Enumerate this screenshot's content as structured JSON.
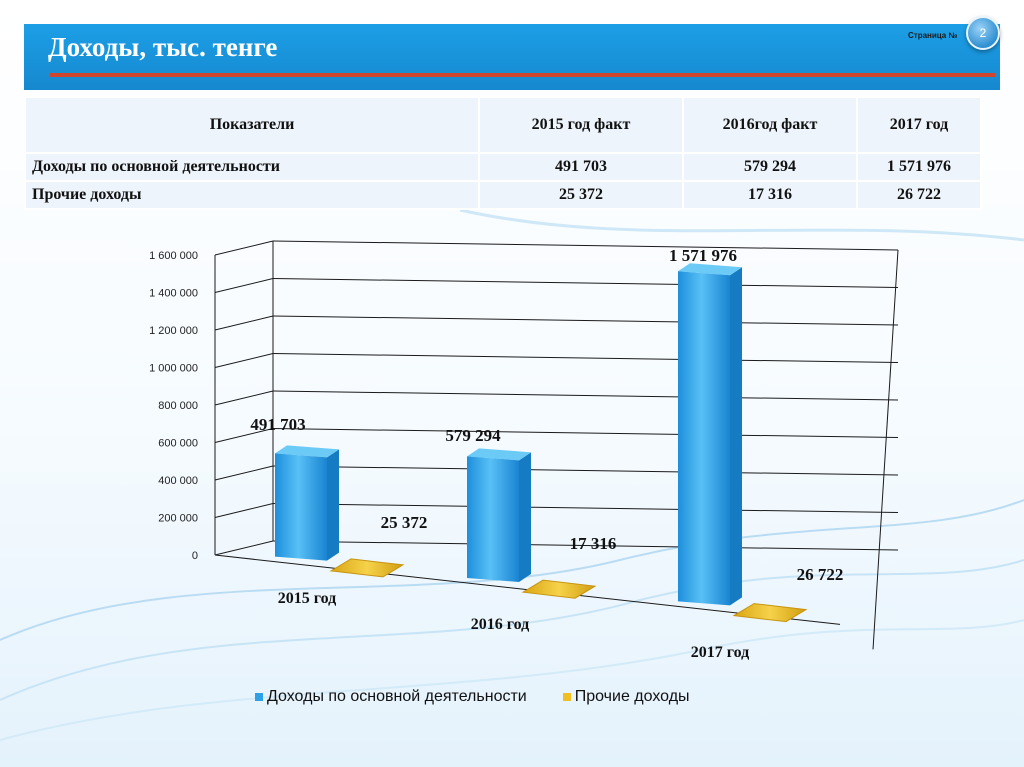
{
  "header": {
    "title": "Доходы, тыс. тенге",
    "page_label": "Страница №",
    "page_number": "2"
  },
  "table": {
    "columns": [
      "Показатели",
      "2015 год факт",
      "2016год факт",
      "2017 год"
    ],
    "rows": [
      {
        "label": "Доходы по основной деятельности",
        "values": [
          "491 703",
          "579 294",
          "1 571 976"
        ]
      },
      {
        "label": "Прочие доходы",
        "values": [
          "25 372",
          "17 316",
          "26 722"
        ]
      }
    ]
  },
  "chart_data": {
    "type": "bar",
    "categories": [
      "2015 год",
      "2016 год",
      "2017 год"
    ],
    "series": [
      {
        "name": "Доходы по основной деятельности",
        "values": [
          491703,
          579294,
          1571976
        ],
        "labels": [
          "491 703",
          "579 294",
          "1 571 976"
        ],
        "color": "#2ea0e6"
      },
      {
        "name": "Прочие доходы",
        "values": [
          25372,
          17316,
          26722
        ],
        "labels": [
          "25 372",
          "17 316",
          "26 722"
        ],
        "color": "#f0c020"
      }
    ],
    "ylim": [
      0,
      1600000
    ],
    "yticks": [
      0,
      200000,
      400000,
      600000,
      800000,
      1000000,
      1200000,
      1400000,
      1600000
    ],
    "ytick_labels": [
      "0",
      "200 000",
      "400 000",
      "600 000",
      "800 000",
      "1 000 000",
      "1 200 000",
      "1 400 000",
      "1 600 000"
    ],
    "grid": true,
    "three_d": true,
    "legend_position": "bottom"
  },
  "colors": {
    "header": "#1688cf",
    "accent_line": "#d0452b",
    "series_main": "#2ea0e6",
    "series_other": "#f0c020"
  }
}
